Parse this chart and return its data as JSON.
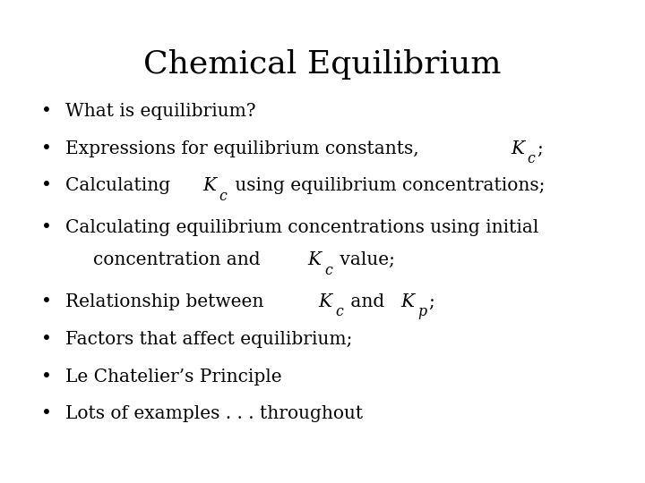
{
  "title": "Chemical Equilibrium",
  "background_color": "#ffffff",
  "title_fontsize": 26,
  "title_font": "DejaVu Serif",
  "body_fontsize": 14.5,
  "body_font": "DejaVu Serif",
  "bullet_char": "•",
  "lines": [
    {
      "bullet": true,
      "indent": false,
      "parts": [
        {
          "text": "What is equilibrium?",
          "italic": false,
          "sub": false
        }
      ]
    },
    {
      "bullet": true,
      "indent": false,
      "parts": [
        {
          "text": "Expressions for equilibrium constants, ",
          "italic": false,
          "sub": false
        },
        {
          "text": "K",
          "italic": true,
          "sub": false
        },
        {
          "text": "c",
          "italic": true,
          "sub": true
        },
        {
          "text": ";",
          "italic": false,
          "sub": false
        }
      ]
    },
    {
      "bullet": true,
      "indent": false,
      "parts": [
        {
          "text": "Calculating ",
          "italic": false,
          "sub": false
        },
        {
          "text": "K",
          "italic": true,
          "sub": false
        },
        {
          "text": "c",
          "italic": true,
          "sub": true
        },
        {
          "text": " using equilibrium concentrations;",
          "italic": false,
          "sub": false
        }
      ]
    },
    {
      "bullet": true,
      "indent": false,
      "parts": [
        {
          "text": "Calculating equilibrium concentrations using initial",
          "italic": false,
          "sub": false
        }
      ]
    },
    {
      "bullet": false,
      "indent": true,
      "parts": [
        {
          "text": "concentration and ",
          "italic": false,
          "sub": false
        },
        {
          "text": "K",
          "italic": true,
          "sub": false
        },
        {
          "text": "c",
          "italic": true,
          "sub": true
        },
        {
          "text": " value;",
          "italic": false,
          "sub": false
        }
      ]
    },
    {
      "bullet": true,
      "indent": false,
      "parts": [
        {
          "text": "Relationship between ",
          "italic": false,
          "sub": false
        },
        {
          "text": "K",
          "italic": true,
          "sub": false
        },
        {
          "text": "c",
          "italic": true,
          "sub": true
        },
        {
          "text": " and ",
          "italic": false,
          "sub": false
        },
        {
          "text": "K",
          "italic": true,
          "sub": false
        },
        {
          "text": "p",
          "italic": true,
          "sub": true
        },
        {
          "text": ";",
          "italic": false,
          "sub": false
        }
      ]
    },
    {
      "bullet": true,
      "indent": false,
      "parts": [
        {
          "text": "Factors that affect equilibrium;",
          "italic": false,
          "sub": false
        }
      ]
    },
    {
      "bullet": true,
      "indent": false,
      "parts": [
        {
          "text": "Le Chatelier’s Principle",
          "italic": false,
          "sub": false
        }
      ]
    },
    {
      "bullet": true,
      "indent": false,
      "parts": [
        {
          "text": "Lots of examples . . . throughout",
          "italic": false,
          "sub": false
        }
      ]
    }
  ]
}
